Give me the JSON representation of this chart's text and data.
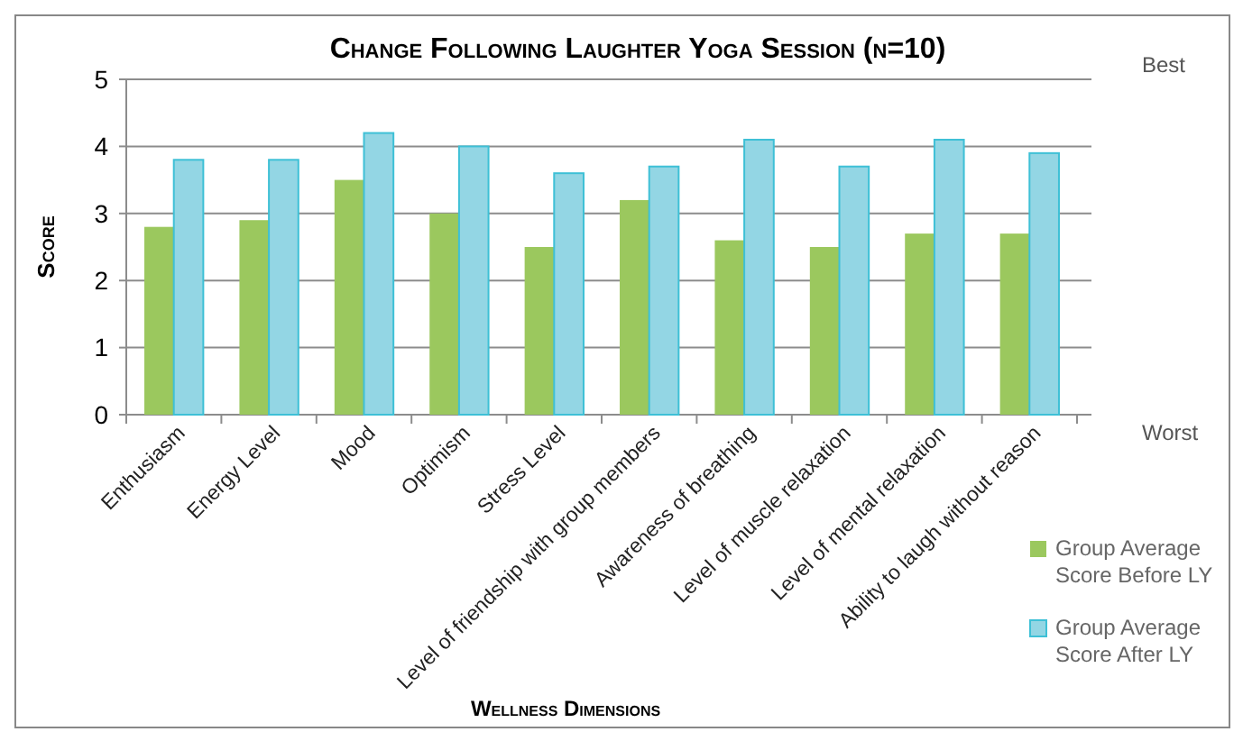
{
  "chart_data": {
    "type": "bar",
    "title": "Change Following Laughter Yoga Session (n=10)",
    "xlabel": "Wellness Dimensions",
    "ylabel": "Score",
    "categories": [
      "Enthusiasm",
      "Energy Level",
      "Mood",
      "Optimism",
      "Stress Level",
      "Level of friendship with group members",
      "Awareness of breathing",
      "Level of muscle relaxation",
      "Level of mental relaxation",
      "Ability to laugh without reason"
    ],
    "series": [
      {
        "name": "Group Average Score Before LY",
        "color": "#9bc85e",
        "values": [
          2.8,
          2.9,
          3.5,
          3.0,
          2.5,
          3.2,
          2.6,
          2.5,
          2.7,
          2.7
        ]
      },
      {
        "name": "Group Average Score After LY",
        "color": "#93d6e4",
        "values": [
          3.8,
          3.8,
          4.2,
          4.0,
          3.6,
          3.7,
          4.1,
          3.7,
          4.1,
          3.9
        ]
      }
    ],
    "ylim": [
      0,
      5
    ],
    "yticks": [
      0,
      1,
      2,
      3,
      4,
      5
    ],
    "grid": "y",
    "legend": "bottom right",
    "annotations": [
      "Best",
      "Worst"
    ]
  }
}
